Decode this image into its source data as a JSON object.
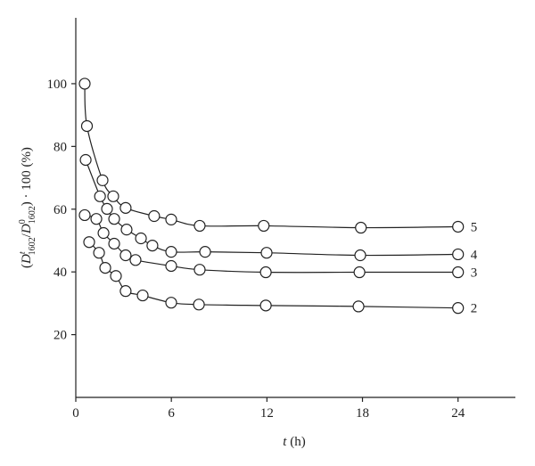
{
  "chart_data": {
    "type": "scatter-fit",
    "x_label": [
      "t",
      " (h)"
    ],
    "y_label": [
      "(",
      "D",
      "t",
      "1602",
      "/",
      "D",
      "0",
      "1602",
      ") · 100 (%)"
    ],
    "xlim": [
      0,
      27.6
    ],
    "ylim": [
      0,
      121
    ],
    "xticks": [
      0,
      6,
      12,
      18,
      24
    ],
    "yticks": [
      20,
      40,
      60,
      80,
      100
    ],
    "color": "#222222",
    "series": [
      {
        "name": "5",
        "x": [
          0.56,
          0.7,
          1.68,
          2.35,
          3.13,
          4.92,
          5.99,
          7.78,
          11.8,
          17.9,
          24
        ],
        "values": [
          100,
          86.5,
          69.2,
          64.1,
          60.4,
          57.8,
          56.7,
          54.7,
          54.7,
          54.1,
          54.4
        ]
      },
      {
        "name": "4",
        "x": [
          0.62,
          1.52,
          1.96,
          2.41,
          3.19,
          4.09,
          4.81,
          5.99,
          8.12,
          11.98,
          17.86,
          24
        ],
        "values": [
          75.7,
          64.1,
          60.1,
          56.9,
          53.5,
          50.7,
          48.4,
          46.4,
          46.4,
          46.1,
          45.3,
          45.6
        ]
      },
      {
        "name": "3",
        "x": [
          0.56,
          1.29,
          1.74,
          2.41,
          3.13,
          3.75,
          5.99,
          7.78,
          11.93,
          17.81,
          24
        ],
        "values": [
          58.1,
          56.9,
          52.4,
          49.0,
          45.3,
          43.8,
          41.9,
          40.7,
          39.9,
          39.9,
          39.9
        ]
      },
      {
        "name": "2",
        "x": [
          0.84,
          1.46,
          1.85,
          2.52,
          3.13,
          4.2,
          5.99,
          7.73,
          11.93,
          17.75,
          24
        ],
        "values": [
          49.5,
          46.1,
          41.3,
          38.7,
          33.9,
          32.5,
          30.2,
          29.6,
          29.3,
          29.0,
          28.5
        ]
      }
    ]
  }
}
